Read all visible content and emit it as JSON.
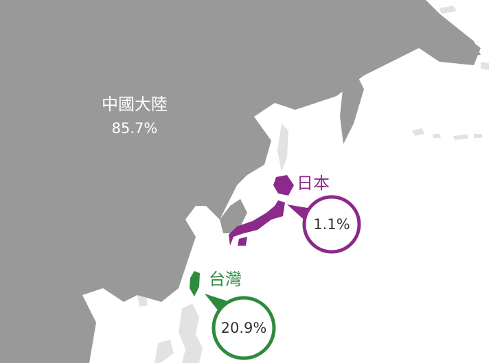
{
  "regions": [
    {
      "name": "中國大陸",
      "share": "85.7%"
    },
    {
      "name": "日本",
      "share": "1.1%"
    },
    {
      "name": "台灣",
      "share": "20.9%"
    }
  ]
}
